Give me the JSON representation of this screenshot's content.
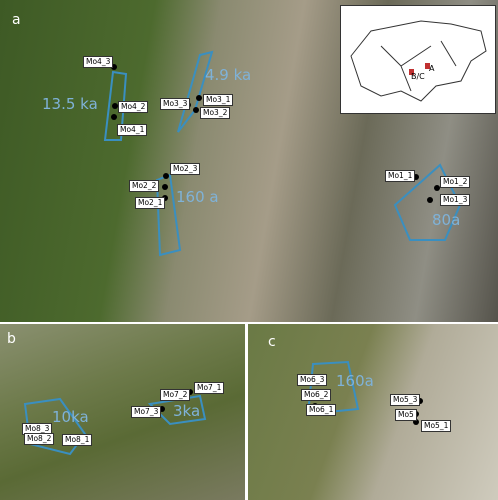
{
  "panels": [
    {
      "letter": "a",
      "samples": [
        "Mo4_3",
        "Mo4_2",
        "Mo4_1",
        "Mo3_3",
        "Mo3_1",
        "Mo3_2",
        "Mo2_3",
        "Mo2_2",
        "Mo2_1",
        "Mo1_1",
        "Mo1_2",
        "Mo1_3"
      ],
      "ages": [
        "13.5 ka",
        "4.9 ka",
        "160 a",
        "80a"
      ]
    },
    {
      "letter": "b",
      "samples": [
        "Mo7_3",
        "Mo7_2",
        "Mo7_1",
        "Mo8_3",
        "Mo8_2",
        "Mo8_1"
      ],
      "ages": [
        "3ka",
        "10ka"
      ]
    },
    {
      "letter": "c",
      "samples": [
        "Mo6_3",
        "Mo6_2",
        "Mo6_1",
        "Mo5_3",
        "Mo5",
        "Mo5_1"
      ],
      "ages": [
        "160a"
      ]
    }
  ],
  "inset": {
    "labels": [
      "B/C",
      "A"
    ]
  }
}
